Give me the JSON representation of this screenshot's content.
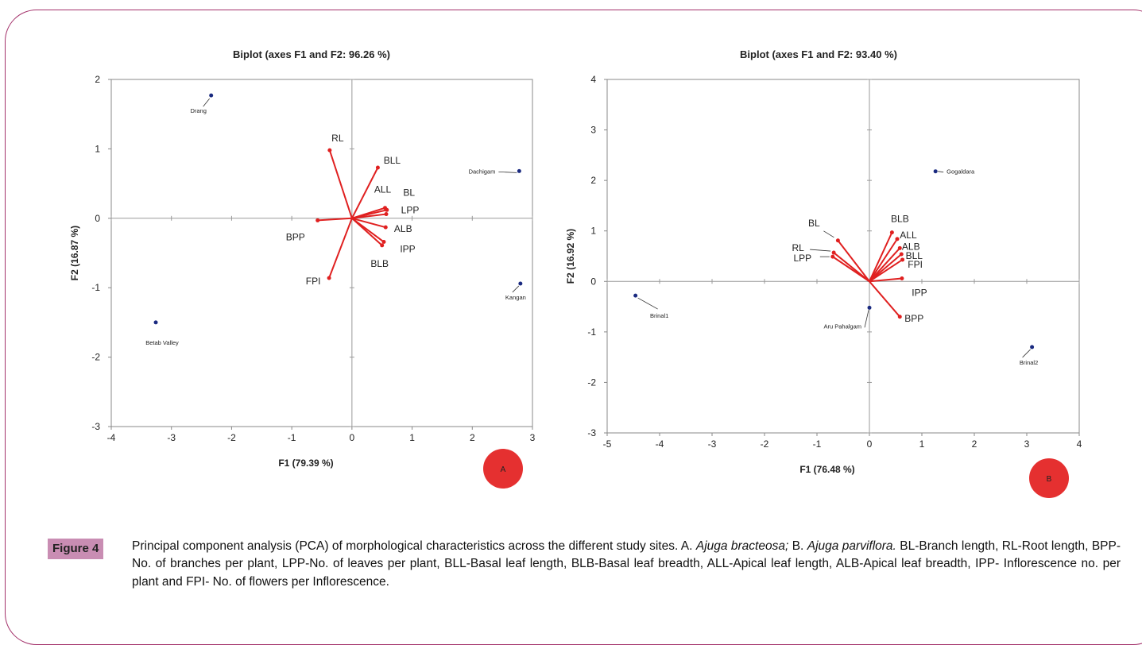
{
  "chart_data": [
    {
      "type": "scatter",
      "subtype": "biplot",
      "title": "Biplot (axes F1 and F2: 96.26 %)",
      "xlabel": "F1 (79.39 %)",
      "ylabel": "F2 (16.87 %)",
      "xlim": [
        -4,
        3
      ],
      "ylim": [
        -3,
        2
      ],
      "xticks": [
        "-4",
        "-3",
        "-2",
        "-1",
        "0",
        "1",
        "2",
        "3"
      ],
      "yticks": [
        "-3",
        "-2",
        "-1",
        "0",
        "1",
        "2"
      ],
      "vector_color": "#e02020",
      "point_color": "#1a2a80",
      "observations": [
        {
          "name": "Drang",
          "x": -2.34,
          "y": 1.77
        },
        {
          "name": "Dachigam",
          "x": 2.78,
          "y": 0.68
        },
        {
          "name": "Kangan",
          "x": 2.8,
          "y": -0.94
        },
        {
          "name": "Betab Valley",
          "x": -3.26,
          "y": -1.5
        }
      ],
      "variables": [
        {
          "name": "RL",
          "x": -0.37,
          "y": 0.98
        },
        {
          "name": "BLL",
          "x": 0.43,
          "y": 0.73
        },
        {
          "name": "ALL",
          "x": 0.55,
          "y": 0.15
        },
        {
          "name": "BL",
          "x": 0.58,
          "y": 0.12
        },
        {
          "name": "LPP",
          "x": 0.57,
          "y": 0.06
        },
        {
          "name": "BPP",
          "x": -0.57,
          "y": -0.03
        },
        {
          "name": "ALB",
          "x": 0.56,
          "y": -0.13
        },
        {
          "name": "IPP",
          "x": 0.53,
          "y": -0.34
        },
        {
          "name": "BLB",
          "x": 0.5,
          "y": -0.39
        },
        {
          "name": "FPI",
          "x": -0.38,
          "y": -0.86
        }
      ],
      "badge": {
        "label": "A",
        "color": "#e53030"
      }
    },
    {
      "type": "scatter",
      "subtype": "biplot",
      "title": "Biplot (axes F1 and F2: 93.40 %)",
      "xlabel": "F1 (76.48 %)",
      "ylabel": "F2 (16.92 %)",
      "xlim": [
        -5,
        4
      ],
      "ylim": [
        -3,
        4
      ],
      "xticks": [
        "-5",
        "-4",
        "-3",
        "-2",
        "-1",
        "0",
        "1",
        "2",
        "3",
        "4"
      ],
      "yticks": [
        "-3",
        "-2",
        "-1",
        "0",
        "1",
        "2",
        "3",
        "4"
      ],
      "vector_color": "#e02020",
      "point_color": "#1a2a80",
      "observations": [
        {
          "name": "Gogaldara",
          "x": 1.26,
          "y": 2.18
        },
        {
          "name": "Brinal1",
          "x": -4.46,
          "y": -0.28
        },
        {
          "name": "Aru Pahalgam",
          "x": 0.0,
          "y": -0.52
        },
        {
          "name": "Brinal2",
          "x": 3.1,
          "y": -1.3
        }
      ],
      "variables": [
        {
          "name": "BL",
          "x": -0.6,
          "y": 0.81
        },
        {
          "name": "RL",
          "x": -0.68,
          "y": 0.57
        },
        {
          "name": "LPP",
          "x": -0.7,
          "y": 0.49
        },
        {
          "name": "BLB",
          "x": 0.43,
          "y": 0.97
        },
        {
          "name": "ALL",
          "x": 0.53,
          "y": 0.84
        },
        {
          "name": "ALB",
          "x": 0.58,
          "y": 0.66
        },
        {
          "name": "BLL",
          "x": 0.61,
          "y": 0.54
        },
        {
          "name": "FPI",
          "x": 0.63,
          "y": 0.43
        },
        {
          "name": "IPP",
          "x": 0.62,
          "y": 0.06
        },
        {
          "name": "BPP",
          "x": 0.58,
          "y": -0.7
        }
      ],
      "badge": {
        "label": "B",
        "color": "#e53030"
      }
    }
  ],
  "caption": {
    "tag": "Figure 4",
    "lead": "Principal component analysis (PCA) of morphological characteristics across the different study sites. A.",
    "species_a": "Ajuga bracteosa;",
    "mid": "B.",
    "species_b": "Ajuga parviflora.",
    "rest": "BL-Branch length, RL-Root length, BPP-No. of branches per plant, LPP-No. of leaves per plant, BLL-Basal leaf length, BLB-Basal leaf breadth, ALL-Apical leaf length, ALB-Apical leaf breadth, IPP- Inflorescence no. per plant and FPI- No. of flowers per Inflorescence."
  }
}
